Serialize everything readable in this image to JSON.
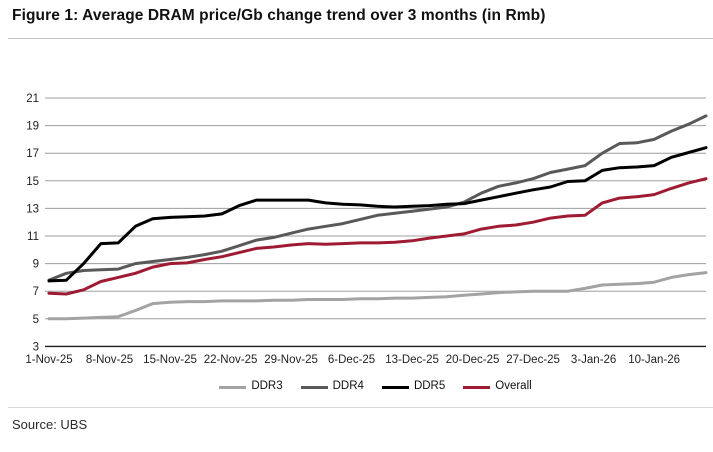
{
  "title": "Figure 1: Average DRAM price/Gb change trend over 3 months (in Rmb)",
  "source": "Source: UBS",
  "chart_data": {
    "type": "line",
    "title": "Average DRAM price/Gb change trend over 3 months (in Rmb)",
    "xlabel": "",
    "ylabel": "",
    "ylim": [
      3,
      21
    ],
    "y_ticks": [
      3,
      5,
      7,
      9,
      11,
      13,
      15,
      17,
      19,
      21
    ],
    "grid": "horizontal-gray",
    "legend_position": "bottom",
    "x_day_range": [
      0,
      76
    ],
    "x_tick_days": [
      0,
      7,
      14,
      21,
      28,
      35,
      42,
      49,
      56,
      63,
      70
    ],
    "x_tick_labels": [
      "1-Nov-25",
      "8-Nov-25",
      "15-Nov-25",
      "22-Nov-25",
      "29-Nov-25",
      "6-Dec-25",
      "13-Dec-25",
      "20-Dec-25",
      "27-Dec-25",
      "3-Jan-26",
      "10-Jan-26"
    ],
    "sample_days": [
      0,
      2,
      4,
      6,
      8,
      10,
      12,
      14,
      16,
      18,
      20,
      22,
      24,
      26,
      28,
      30,
      32,
      34,
      36,
      38,
      40,
      42,
      44,
      46,
      48,
      50,
      52,
      54,
      56,
      58,
      60,
      62,
      64,
      66,
      68,
      70,
      72,
      74,
      76
    ],
    "series": [
      {
        "name": "DDR3",
        "color": "#a3a3a3",
        "values": [
          5.0,
          5.0,
          5.05,
          5.1,
          5.15,
          5.6,
          6.1,
          6.2,
          6.25,
          6.25,
          6.3,
          6.3,
          6.3,
          6.35,
          6.35,
          6.4,
          6.4,
          6.4,
          6.45,
          6.45,
          6.5,
          6.5,
          6.55,
          6.6,
          6.7,
          6.8,
          6.9,
          6.95,
          7.0,
          7.0,
          7.0,
          7.2,
          7.45,
          7.5,
          7.55,
          7.65,
          8.0,
          8.2,
          8.35
        ]
      },
      {
        "name": "DDR4",
        "color": "#595959",
        "values": [
          7.8,
          8.3,
          8.5,
          8.55,
          8.6,
          9.0,
          9.15,
          9.3,
          9.45,
          9.65,
          9.9,
          10.3,
          10.7,
          10.9,
          11.2,
          11.5,
          11.7,
          11.9,
          12.2,
          12.5,
          12.65,
          12.8,
          12.95,
          13.1,
          13.45,
          14.1,
          14.6,
          14.85,
          15.15,
          15.6,
          15.85,
          16.1,
          17.0,
          17.7,
          17.75,
          18.0,
          18.6,
          19.1,
          19.7
        ]
      },
      {
        "name": "DDR5",
        "color": "#000000",
        "values": [
          7.75,
          7.8,
          9.0,
          10.45,
          10.5,
          11.7,
          12.25,
          12.35,
          12.4,
          12.45,
          12.6,
          13.2,
          13.6,
          13.6,
          13.6,
          13.6,
          13.4,
          13.3,
          13.25,
          13.15,
          13.1,
          13.15,
          13.2,
          13.3,
          13.35,
          13.6,
          13.85,
          14.1,
          14.35,
          14.55,
          14.95,
          15.0,
          15.75,
          15.95,
          16.0,
          16.1,
          16.7,
          17.05,
          17.4
        ]
      },
      {
        "name": "Overall",
        "color": "#9e1b32",
        "values": [
          6.85,
          6.8,
          7.1,
          7.7,
          8.0,
          8.3,
          8.75,
          9.0,
          9.05,
          9.3,
          9.5,
          9.8,
          10.1,
          10.2,
          10.35,
          10.45,
          10.4,
          10.45,
          10.5,
          10.5,
          10.55,
          10.65,
          10.85,
          11.0,
          11.15,
          11.5,
          11.7,
          11.8,
          12.0,
          12.3,
          12.45,
          12.5,
          13.4,
          13.75,
          13.85,
          14.0,
          14.45,
          14.85,
          15.15
        ]
      }
    ]
  }
}
